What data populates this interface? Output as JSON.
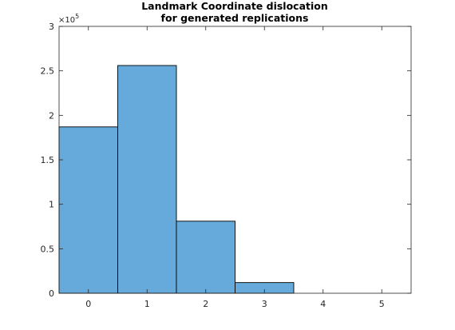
{
  "chart_data": {
    "type": "bar",
    "title_lines": [
      "Landmark Coordinate dislocation",
      "for generated replications"
    ],
    "xlabel": "",
    "ylabel": "",
    "bins": [
      {
        "center": 0,
        "value": 187000
      },
      {
        "center": 1,
        "value": 256000
      },
      {
        "center": 2,
        "value": 81000
      },
      {
        "center": 3,
        "value": 12000
      }
    ],
    "bin_width": 1,
    "x_ticks": [
      0,
      1,
      2,
      3,
      4,
      5
    ],
    "x_tick_labels": [
      "0",
      "1",
      "2",
      "3",
      "4",
      "5"
    ],
    "xlim": [
      -0.5,
      5.5
    ],
    "y_ticks": [
      0,
      50000,
      100000,
      150000,
      200000,
      250000,
      300000
    ],
    "y_tick_labels": [
      "0",
      "0.5",
      "1",
      "1.5",
      "2",
      "2.5",
      "3"
    ],
    "ylim": [
      0,
      300000
    ],
    "y_exponent": {
      "base": "×10",
      "power": "5"
    },
    "grid": false,
    "legend": "none",
    "colors": {
      "bar_fill": "#66aadb",
      "bar_edge": "#000000",
      "axes": "#262626"
    }
  }
}
